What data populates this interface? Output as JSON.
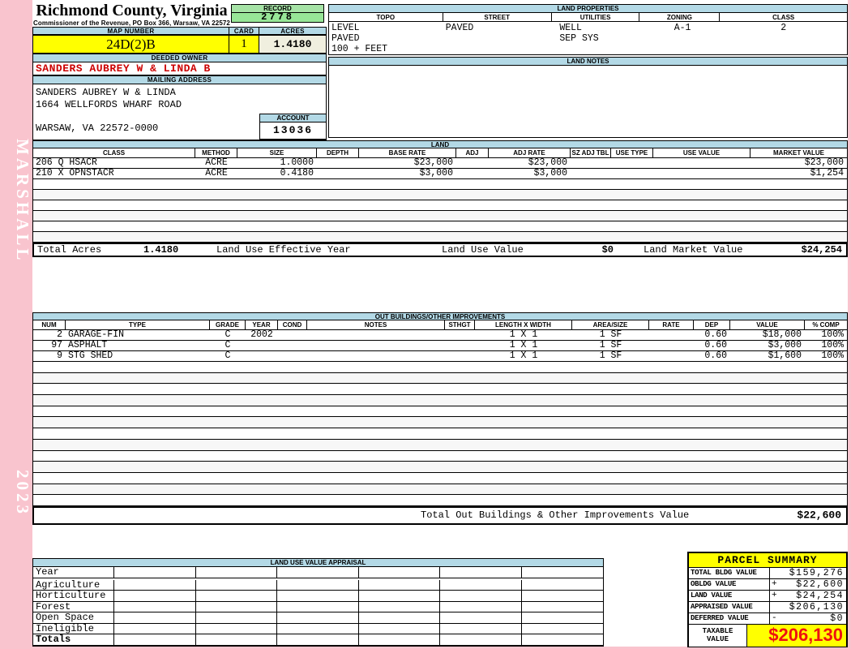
{
  "sidebar": {
    "vendor": "MARSHALL",
    "year": "2023"
  },
  "header": {
    "title": "Richmond County, Virginia",
    "subtitle": "Commissioner of the Revenue, PO Box 366, Warsaw, VA 22572",
    "record_label": "RECORD",
    "record_value": "2778",
    "map_number_label": "MAP NUMBER",
    "map_number": "24D(2)B",
    "card_label": "CARD",
    "card": "1",
    "acres_label": "ACRES",
    "acres": "1.4180"
  },
  "land_properties": {
    "title": "LAND PROPERTIES",
    "columns": [
      "TOPO",
      "STREET",
      "UTILITIES",
      "ZONING",
      "CLASS"
    ],
    "topo": [
      "LEVEL",
      "PAVED",
      "100 + FEET"
    ],
    "street": [
      "PAVED"
    ],
    "utilities": [
      "WELL",
      "SEP SYS"
    ],
    "zoning": [
      "A-1"
    ],
    "class": [
      "2"
    ]
  },
  "owner": {
    "deeded_owner_label": "DEEDED OWNER",
    "deeded_owner": "SANDERS AUBREY W & LINDA B",
    "mailing_address_label": "MAILING ADDRESS",
    "address_lines": [
      "SANDERS AUBREY W & LINDA",
      "1664 WELLFORDS WHARF ROAD",
      "",
      "WARSAW, VA 22572-0000"
    ],
    "account_label": "ACCOUNT",
    "account": "13036"
  },
  "land_notes": {
    "title": "LAND NOTES"
  },
  "land": {
    "title": "LAND",
    "columns": [
      "CLASS",
      "METHOD",
      "SIZE",
      "DEPTH",
      "BASE RATE",
      "ADJ",
      "ADJ RATE",
      "SZ ADJ TBL",
      "USE TYPE",
      "USE VALUE",
      "MARKET VALUE"
    ],
    "rows": [
      [
        "206 Q HSACR",
        "ACRE",
        "1.0000",
        "",
        "$23,000",
        "",
        "$23,000",
        "",
        "",
        "",
        "$23,000"
      ],
      [
        "210 X OPNSTACR",
        "ACRE",
        "0.4180",
        "",
        "$3,000",
        "",
        "$3,000",
        "",
        "",
        "",
        "$1,254"
      ]
    ],
    "empty_row_count": 6,
    "totals": {
      "total_acres_label": "Total Acres",
      "total_acres": "1.4180",
      "effective_year_label": "Land Use Effective Year",
      "use_value_label": "Land Use Value",
      "use_value": "$0",
      "market_value_label": "Land Market Value",
      "market_value": "$24,254"
    }
  },
  "out_buildings": {
    "title": "OUT BUILDINGS/OTHER IMPROVEMENTS",
    "columns": [
      "NUM",
      "TYPE",
      "GRADE",
      "YEAR",
      "COND",
      "NOTES",
      "STHGT",
      "LENGTH X WIDTH",
      "AREA/SIZE",
      "RATE",
      "DEP",
      "VALUE",
      "% COMP"
    ],
    "rows": [
      [
        "2",
        "GARAGE-FIN",
        "C",
        "2002",
        "",
        "",
        "",
        "1 X 1",
        "1 SF",
        "",
        "0.60",
        "$18,000",
        "100%"
      ],
      [
        "97",
        "ASPHALT",
        "C",
        "",
        "",
        "",
        "",
        "1 X 1",
        "1 SF",
        "",
        "0.60",
        "$3,000",
        "100%"
      ],
      [
        "9",
        "STG SHED",
        "C",
        "",
        "",
        "",
        "",
        "1 X 1",
        "1 SF",
        "",
        "0.60",
        "$1,600",
        "100%"
      ]
    ],
    "empty_row_count": 13,
    "total_label": "Total Out Buildings & Other Improvements Value",
    "total_value": "$22,600"
  },
  "land_use_appraisal": {
    "title": "LAND USE VALUE APPRAISAL",
    "row_labels": [
      "Year",
      "Agriculture",
      "Horticulture",
      "Forest",
      "Open Space",
      "Ineligible",
      "Totals"
    ],
    "data_column_count": 6
  },
  "parcel_summary": {
    "title": "PARCEL SUMMARY",
    "rows": [
      {
        "label": "TOTAL BLDG VALUE",
        "sign": "",
        "value": "$159,276"
      },
      {
        "label": "OBLDG VALUE",
        "sign": "+",
        "value": "$22,600"
      },
      {
        "label": "LAND VALUE",
        "sign": "+",
        "value": "$24,254"
      },
      {
        "label": "APPRAISED VALUE",
        "sign": "",
        "value": "$206,130"
      },
      {
        "label": "DEFERRED VALUE",
        "sign": "-",
        "value": "$0"
      }
    ],
    "taxable_label": "TAXABLE\nVALUE",
    "taxable_value": "$206,130"
  },
  "colors": {
    "pink": "#f9c4ce",
    "header_blue": "#b3d9e6",
    "green_header": "#a6e3a6",
    "green_value": "#97e697",
    "yellow": "#ffff00",
    "cream": "#f0efdf",
    "owner_red": "#cc0000",
    "taxable_red": "#ee1111"
  }
}
